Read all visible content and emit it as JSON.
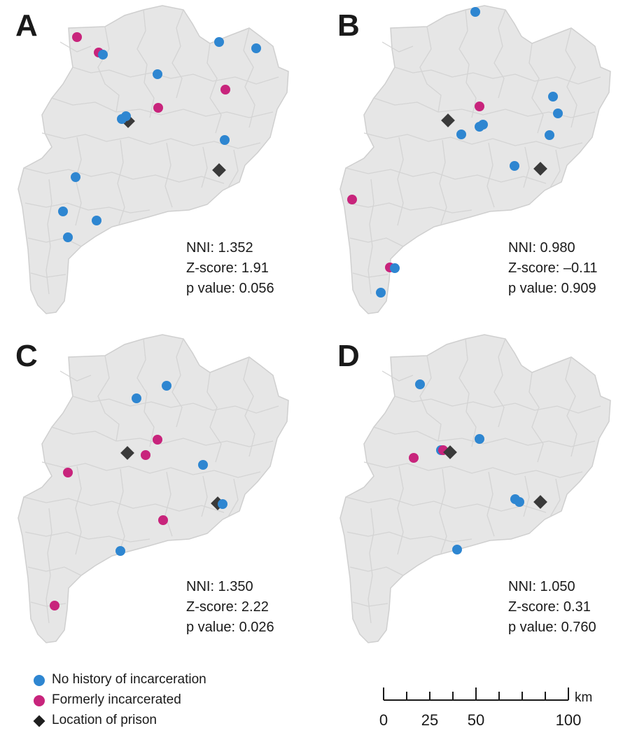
{
  "colors": {
    "no_history": "#2e86d1",
    "formerly": "#c8247c",
    "prison": "#3a3a3a",
    "region_fill": "#e6e6e6",
    "region_border": "#cfcfcf"
  },
  "panels": [
    {
      "letter": "A",
      "nni": "NNI: 1.352",
      "zscore": "Z-score: 1.91",
      "pvalue": "p value: 0.056"
    },
    {
      "letter": "B",
      "nni": "NNI: 0.980",
      "zscore": "Z-score: –0.11",
      "pvalue": "p value: 0.909"
    },
    {
      "letter": "C",
      "nni": "NNI: 1.350",
      "zscore": "Z-score: 2.22",
      "pvalue": "p value: 0.026"
    },
    {
      "letter": "D",
      "nni": "NNI: 1.050",
      "zscore": "Z-score: 0.31",
      "pvalue": "p value: 0.760"
    }
  ],
  "legend": {
    "items": [
      {
        "label": "No history of incarceration",
        "symbol": "circle",
        "color_key": "no_history"
      },
      {
        "label": "Formerly incarcerated",
        "symbol": "circle",
        "color_key": "formerly"
      },
      {
        "label": "Location of prison",
        "symbol": "diamond",
        "color_key": "prison"
      }
    ]
  },
  "scale_bar": {
    "unit": "km",
    "tick_labels": [
      "0",
      "25",
      "50",
      "100"
    ]
  }
}
